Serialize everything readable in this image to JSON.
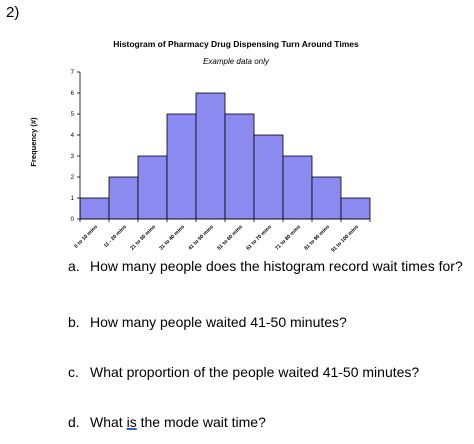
{
  "problem_number": "2)",
  "chart_data": {
    "type": "bar",
    "title": "Histogram of Pharmacy Drug Dispensing Turn Around Times",
    "subtitle": "Example data only",
    "xlabel": "",
    "ylabel": "Frequency (#)",
    "categories": [
      "0 to 10 mins",
      "11 - 20 mins",
      "21 to 30 mins",
      "31 to 40 mins",
      "41 to 50 mins",
      "51 to 60 mins",
      "61 to 70 mins",
      "71 to 80 mins",
      "81 to 90 mins",
      "91 to 100 mins"
    ],
    "values": [
      1,
      2,
      3,
      5,
      6,
      5,
      4,
      3,
      2,
      1
    ],
    "ylim": [
      0,
      7
    ],
    "yticks": [
      0,
      1,
      2,
      3,
      4,
      5,
      6,
      7
    ],
    "bar_color": "#8a8af0",
    "bar_edge_color": "#000000",
    "grid": false,
    "legend": "none"
  },
  "questions": [
    {
      "letter": "a.",
      "text": "How many people does the histogram record wait times for?"
    },
    {
      "letter": "b.",
      "text": "How many people waited 41-50 minutes?"
    },
    {
      "letter": "c.",
      "text": "What proportion of the people waited 41-50 minutes?"
    },
    {
      "letter": "d.",
      "text_before": "What ",
      "text_underlined": "is",
      "text_after": " the mode wait time?"
    }
  ]
}
